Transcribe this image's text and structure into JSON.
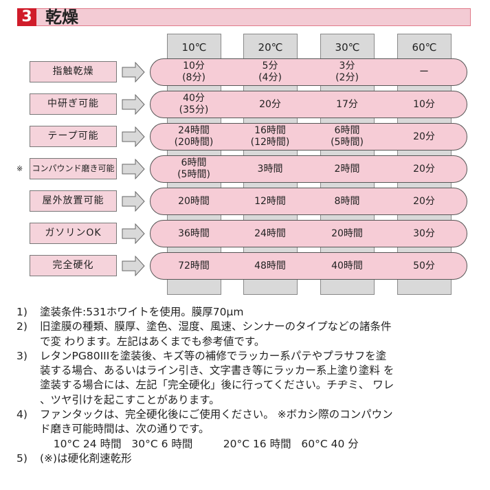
{
  "header": {
    "number": "3",
    "title": "乾燥"
  },
  "columns": [
    "10℃",
    "20℃",
    "30℃",
    "60℃"
  ],
  "rows": [
    {
      "label": "指触乾燥",
      "marker": "",
      "values": [
        [
          "10分",
          "(8分)"
        ],
        [
          "5分",
          "(4分)"
        ],
        [
          "3分",
          "(2分)"
        ],
        [
          "ー"
        ]
      ]
    },
    {
      "label": "中研ぎ可能",
      "marker": "",
      "values": [
        [
          "40分",
          "(35分)"
        ],
        [
          "20分"
        ],
        [
          "17分"
        ],
        [
          "10分"
        ]
      ]
    },
    {
      "label": "テープ可能",
      "marker": "",
      "values": [
        [
          "24時間",
          "(20時間)"
        ],
        [
          "16時間",
          "(12時間)"
        ],
        [
          "6時間",
          "(5時間)"
        ],
        [
          "20分"
        ]
      ]
    },
    {
      "label": "コンパウンド磨き可能",
      "marker": "※",
      "values": [
        [
          "6時間",
          "(5時間)"
        ],
        [
          "3時間"
        ],
        [
          "2時間"
        ],
        [
          "20分"
        ]
      ]
    },
    {
      "label": "屋外放置可能",
      "marker": "",
      "values": [
        [
          "20時間"
        ],
        [
          "12時間"
        ],
        [
          "8時間"
        ],
        [
          "20分"
        ]
      ]
    },
    {
      "label": "ガソリンOK",
      "marker": "",
      "values": [
        [
          "36時間"
        ],
        [
          "24時間"
        ],
        [
          "20時間"
        ],
        [
          "30分"
        ]
      ]
    },
    {
      "label": "完全硬化",
      "marker": "",
      "values": [
        [
          "72時間"
        ],
        [
          "48時間"
        ],
        [
          "40時間"
        ],
        [
          "50分"
        ]
      ]
    }
  ],
  "notes": [
    {
      "n": "1)",
      "lines": [
        "塗装条件:531ホワイトを使用。膜厚70μm"
      ]
    },
    {
      "n": "2)",
      "lines": [
        "旧塗膜の種類、膜厚、塗色、湿度、風速、シンナーのタイプなどの諸条件",
        "で変 わります。左記はあくまでも参考値です。"
      ]
    },
    {
      "n": "3)",
      "lines": [
        "レタンPG80IIIを塗装後、キズ等の補修でラッカー系パテやプラサフを塗",
        "装する場合、あるいはライン引き、文字書き等にラッカー系上塗り塗料 を",
        "塗装する場合には、左記「完全硬化」後に行ってください。チヂミ、 ワレ",
        "、ツヤ引けを起こすことがあります。"
      ]
    },
    {
      "n": "4)",
      "lines": [
        "ファンタックは、完全硬化後にご使用ください。 ※ボカシ際のコンパウン",
        "ド磨き可能時間は、次の通りです。",
        "    10°C 24 時間   30°C 6 時間         20°C 16 時間   60°C 40 分"
      ]
    },
    {
      "n": "5)",
      "lines": [
        "(※)は硬化剤速乾形"
      ]
    }
  ]
}
